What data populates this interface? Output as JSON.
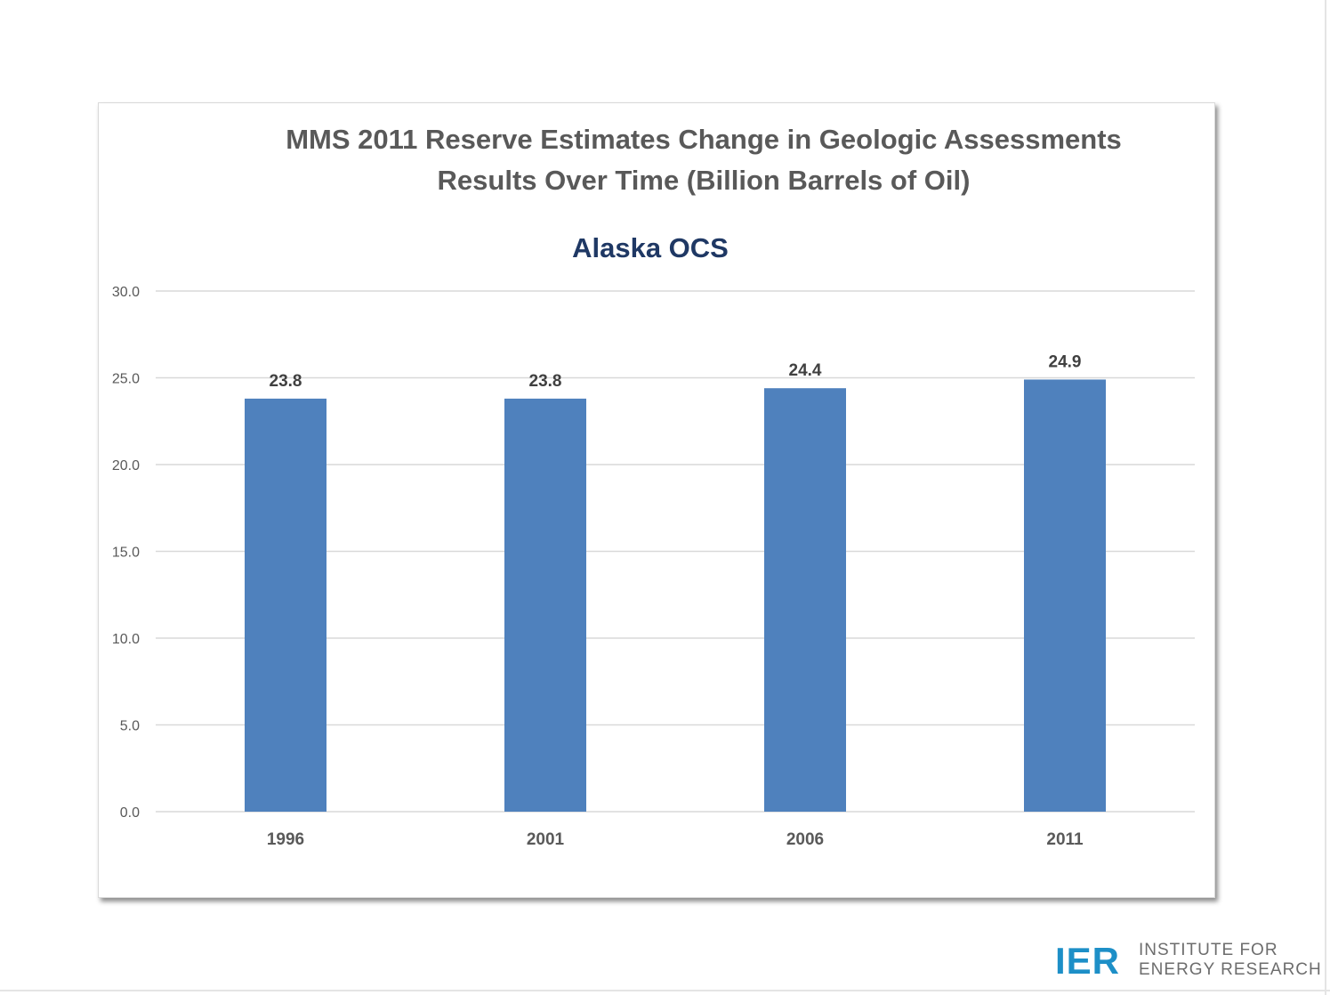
{
  "chart_data": {
    "type": "bar",
    "title": "MMS 2011 Reserve Estimates Change in Geologic Assessments Results Over Time (Billion Barrels of Oil)",
    "subtitle": "Alaska OCS",
    "categories": [
      "1996",
      "2001",
      "2006",
      "2011"
    ],
    "values": [
      23.8,
      23.8,
      24.4,
      24.9
    ],
    "data_labels": [
      "23.8",
      "23.8",
      "24.4",
      "24.9"
    ],
    "ylim": [
      0,
      30
    ],
    "yticks": [
      "0.0",
      "5.0",
      "10.0",
      "15.0",
      "20.0",
      "25.0",
      "30.0"
    ],
    "ytick_values": [
      0,
      5,
      10,
      15,
      20,
      25,
      30
    ],
    "xlabel": "",
    "ylabel": "",
    "grid": true,
    "legend": "none",
    "colors": {
      "bar": "#4f81bd",
      "grid": "#d9d9d9",
      "tick_text": "#595959",
      "label_text": "#404040"
    }
  },
  "logo": {
    "mark": "IER",
    "line1": "INSTITUTE FOR",
    "line2": "ENERGY RESEARCH"
  }
}
